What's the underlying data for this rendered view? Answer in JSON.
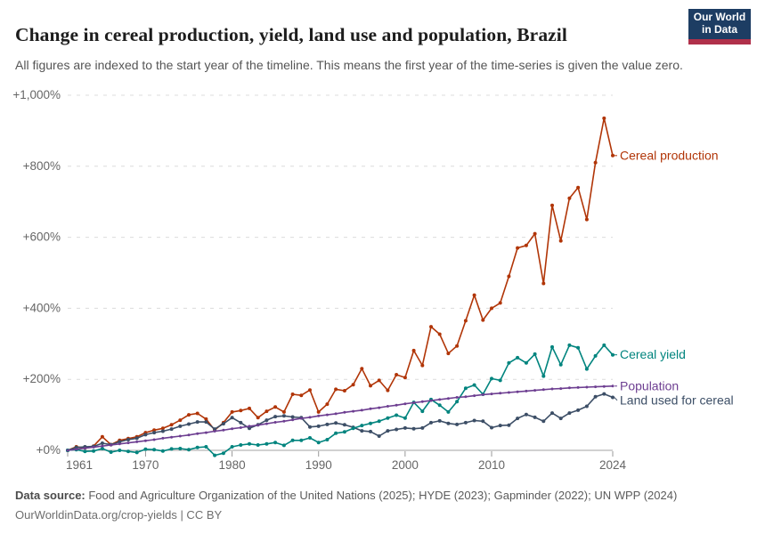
{
  "header": {
    "title": "Change in cereal production, yield, land use and population, Brazil",
    "subtitle": "All figures are indexed to the start year of the timeline. This means the first year of the time-series is given the value zero.",
    "logo": {
      "line1": "Our World",
      "line2": "in Data"
    }
  },
  "chart_data": {
    "type": "line",
    "title": "Change in cereal production, yield, land use and population, Brazil",
    "x_range": [
      1961,
      2024
    ],
    "start_year": 1961,
    "x_ticks": [
      1961,
      1970,
      1980,
      1990,
      2000,
      2010,
      2024
    ],
    "x_tick_labels": [
      "1961",
      "1970",
      "1980",
      "1990",
      "2000",
      "2010",
      "2024"
    ],
    "y_ticks": [
      0,
      200,
      400,
      600,
      800,
      1000
    ],
    "y_tick_labels": [
      "+0%",
      "+200%",
      "+400%",
      "+600%",
      "+800%",
      "+1,000%"
    ],
    "ylim": [
      0,
      1000
    ],
    "unit": "percent change since 1961",
    "grid": "horizontal-dashed",
    "legend_position": "right-edge-labels",
    "colors": {
      "accent_red": "#B13507",
      "teal": "#00847E",
      "purple": "#6D3E91",
      "slate": "#3C4E66"
    },
    "series": [
      {
        "name": "Cereal production",
        "color": "#B13507",
        "marker_r": 2,
        "values": [
          0,
          10,
          7,
          12,
          38,
          16,
          28,
          33,
          38,
          50,
          57,
          62,
          72,
          85,
          100,
          104,
          88,
          57,
          78,
          108,
          112,
          118,
          92,
          110,
          122,
          108,
          158,
          155,
          170,
          108,
          130,
          172,
          168,
          185,
          230,
          182,
          197,
          169,
          213,
          205,
          281,
          239,
          348,
          327,
          273,
          294,
          365,
          437,
          367,
          400,
          415,
          490,
          570,
          577,
          610,
          470,
          690,
          590,
          710,
          740,
          650,
          810,
          935,
          830
        ]
      },
      {
        "name": "Land used for cereal",
        "color": "#3C4E66",
        "marker_r": 2,
        "values": [
          0,
          8,
          10,
          11,
          20,
          16,
          24,
          30,
          34,
          44,
          50,
          54,
          60,
          68,
          74,
          80,
          80,
          60,
          75,
          92,
          78,
          62,
          72,
          85,
          95,
          97,
          94,
          92,
          66,
          68,
          73,
          77,
          72,
          65,
          55,
          53,
          40,
          55,
          59,
          63,
          61,
          63,
          78,
          83,
          76,
          73,
          78,
          84,
          82,
          64,
          70,
          71,
          90,
          101,
          93,
          82,
          105,
          90,
          105,
          113,
          124,
          151,
          159,
          149
        ]
      },
      {
        "name": "Cereal yield",
        "color": "#00847E",
        "marker_r": 2,
        "values": [
          0,
          2,
          -3,
          -2,
          5,
          -5,
          0,
          -3,
          -6,
          3,
          2,
          -2,
          4,
          5,
          2,
          8,
          10,
          -14,
          -8,
          10,
          15,
          18,
          15,
          18,
          22,
          14,
          28,
          28,
          35,
          22,
          30,
          48,
          52,
          62,
          70,
          76,
          82,
          91,
          99,
          91,
          135,
          110,
          143,
          127,
          108,
          137,
          175,
          184,
          158,
          202,
          197,
          246,
          261,
          246,
          271,
          209,
          291,
          241,
          296,
          289,
          229,
          266,
          296,
          269
        ]
      },
      {
        "name": "Population",
        "color": "#6D3E91",
        "marker_r": 1.5,
        "values": [
          0,
          3,
          6,
          9,
          12,
          15,
          18,
          21,
          24,
          27,
          30,
          34,
          37,
          40,
          43,
          47,
          50,
          54,
          57,
          61,
          64,
          68,
          71,
          75,
          79,
          82,
          86,
          90,
          93,
          97,
          100,
          103,
          107,
          110,
          113,
          117,
          120,
          124,
          127,
          131,
          134,
          137,
          140,
          143,
          146,
          149,
          151,
          154,
          157,
          159,
          161,
          163,
          165,
          167,
          169,
          171,
          173,
          174,
          176,
          177,
          178,
          179,
          180,
          181
        ]
      }
    ]
  },
  "footer": {
    "source_label": "Data source:",
    "source_text": " Food and Agriculture Organization of the United Nations (2025); HYDE (2023); Gapminder (2022); UN WPP (2024)",
    "license_line": "OurWorldinData.org/crop-yields | CC BY"
  }
}
